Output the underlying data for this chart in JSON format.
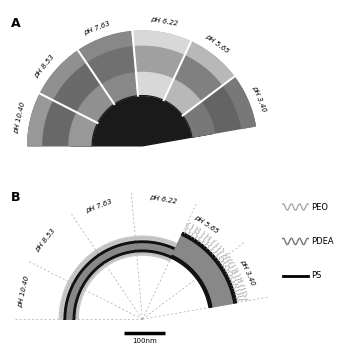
{
  "panel_A_label": "A",
  "panel_B_label": "B",
  "pH_labels": [
    "pH 10.40",
    "pH 8.53",
    "pH 7.63",
    "pH 6.22",
    "pH 5.65",
    "pH 3.40"
  ],
  "pH_angles_mid": [
    167,
    141,
    111,
    80,
    54,
    22
  ],
  "segment_boundaries_deg": [
    180,
    153,
    124,
    95,
    65,
    37,
    10
  ],
  "scale_bar_text": "100nm",
  "legend_labels": [
    "PEO",
    "PDEA",
    "PS"
  ],
  "background_color": "#ffffff",
  "fig_width": 3.56,
  "fig_height": 3.54,
  "dpi": 100
}
